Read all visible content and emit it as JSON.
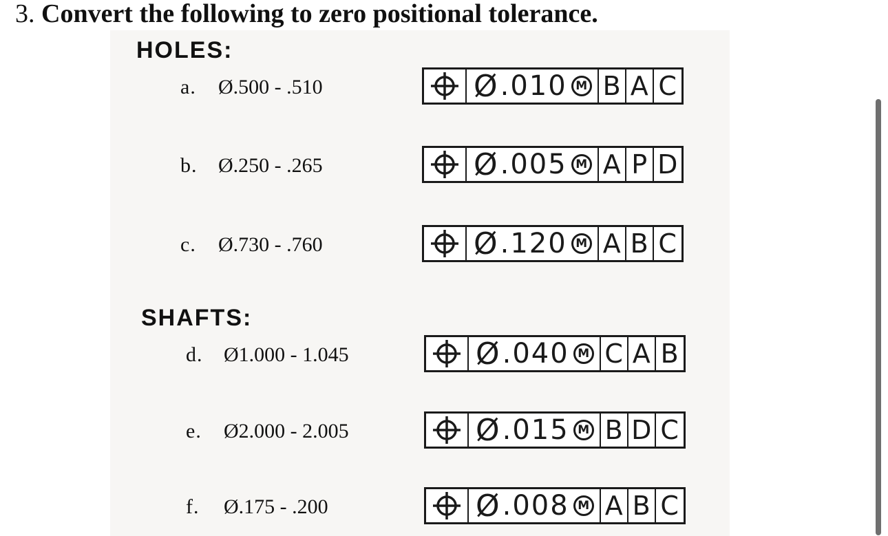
{
  "problem": {
    "number": "3.",
    "text": "Convert the following to zero positional tolerance."
  },
  "holes": {
    "heading": "HOLES:",
    "items": [
      {
        "letter": "a.",
        "size": "Ø.500 - .510",
        "tolerance": ".010",
        "mmc": "M",
        "datums": [
          "B",
          "A",
          "C"
        ]
      },
      {
        "letter": "b.",
        "size": "Ø.250 - .265",
        "tolerance": ".005",
        "mmc": "M",
        "datums": [
          "A",
          "P",
          "D"
        ]
      },
      {
        "letter": "c.",
        "size": "Ø.730 - .760",
        "tolerance": ".120",
        "mmc": "M",
        "datums": [
          "A",
          "B",
          "C"
        ]
      }
    ]
  },
  "shafts": {
    "heading": "SHAFTS:",
    "items": [
      {
        "letter": "d.",
        "size": "Ø1.000 - 1.045",
        "tolerance": ".040",
        "mmc": "M",
        "datums": [
          "C",
          "A",
          "B"
        ]
      },
      {
        "letter": "e.",
        "size": "Ø2.000 - 2.005",
        "tolerance": ".015",
        "mmc": "M",
        "datums": [
          "B",
          "D",
          "C"
        ]
      },
      {
        "letter": "f.",
        "size": "Ø.175 - .200",
        "tolerance": ".008",
        "mmc": "M",
        "datums": [
          "A",
          "B",
          "C"
        ]
      }
    ]
  },
  "symbols": {
    "position": "position-icon",
    "diameter": "Ø"
  },
  "colors": {
    "ink": "#1a1a1a",
    "paper": "#f7f6f4",
    "scrollbar": "#6f6f6f"
  }
}
